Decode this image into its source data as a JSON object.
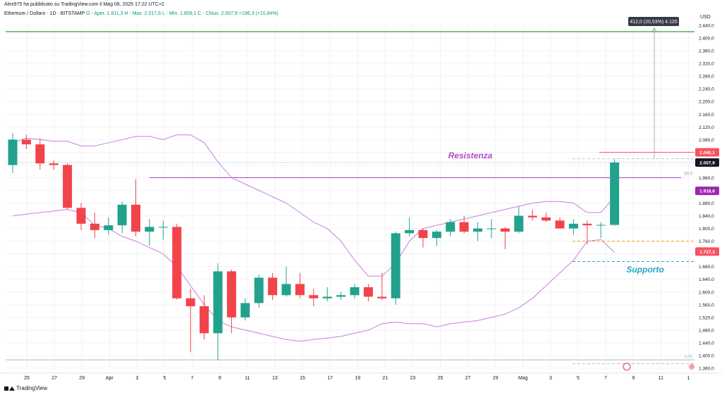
{
  "header": {
    "published": "Alex975 ha pubblicato su TradingView.com il Mag 08, 2025 17:22 UTC+2",
    "symbol": "Ethereum / Dollaro · 1D · BITSTAMP",
    "ohlc": "O - Aper. 1.811,3  H - Max. 2.017,6  L - Min. 1.809,1  C - Chius. 2.007,9 +196,3 (+10,84%)"
  },
  "footer": {
    "brand": "TradingView"
  },
  "colors": {
    "up": "#22a28c",
    "down": "#f2434b",
    "bands": "#c77ee0",
    "resistance_line": "#b04cc8",
    "top_line": "#4caf50",
    "grid": "#f2f3f5",
    "support_text": "#26a3c8"
  },
  "chart_data": {
    "type": "candlestick",
    "symbol": "Ethereum / Dollaro",
    "timeframe": "1D",
    "exchange": "BITSTAMP",
    "y_unit": "USD",
    "ylim": [
      1360,
      2440
    ],
    "y_ticks": [
      1360,
      1400,
      1440,
      1480,
      1520,
      1560,
      1600,
      1640,
      1680,
      1720,
      1760,
      1800,
      1840,
      1880,
      1920,
      1960,
      2000,
      2040,
      2080,
      2120,
      2160,
      2200,
      2240,
      2280,
      2320,
      2360,
      2400,
      2440
    ],
    "x_tick_labels": [
      "25",
      "27",
      "29",
      "Apr",
      "3",
      "5",
      "7",
      "9",
      "11",
      "13",
      "15",
      "17",
      "19",
      "21",
      "23",
      "25",
      "27",
      "29",
      "Mag",
      "3",
      "5",
      "7",
      "9",
      "11",
      "1"
    ],
    "candles": [
      {
        "date": "2025-03-25",
        "o": 2000,
        "h": 2100,
        "l": 1975,
        "c": 2080
      },
      {
        "date": "2025-03-26",
        "o": 2080,
        "h": 2095,
        "l": 2050,
        "c": 2065
      },
      {
        "date": "2025-03-27",
        "o": 2065,
        "h": 2085,
        "l": 1985,
        "c": 2005
      },
      {
        "date": "2025-03-28",
        "o": 2005,
        "h": 2015,
        "l": 1985,
        "c": 2000
      },
      {
        "date": "2025-03-29",
        "o": 2000,
        "h": 2005,
        "l": 1860,
        "c": 1865
      },
      {
        "date": "2025-03-30",
        "o": 1865,
        "h": 1880,
        "l": 1795,
        "c": 1815
      },
      {
        "date": "2025-03-31",
        "o": 1815,
        "h": 1850,
        "l": 1770,
        "c": 1795
      },
      {
        "date": "2025-04-01",
        "o": 1795,
        "h": 1835,
        "l": 1780,
        "c": 1810
      },
      {
        "date": "2025-04-02",
        "o": 1810,
        "h": 1885,
        "l": 1785,
        "c": 1875
      },
      {
        "date": "2025-04-03",
        "o": 1875,
        "h": 1955,
        "l": 1775,
        "c": 1790
      },
      {
        "date": "2025-04-04",
        "o": 1790,
        "h": 1830,
        "l": 1745,
        "c": 1805
      },
      {
        "date": "2025-04-05",
        "o": 1805,
        "h": 1825,
        "l": 1765,
        "c": 1805
      },
      {
        "date": "2025-04-06",
        "o": 1805,
        "h": 1815,
        "l": 1575,
        "c": 1580
      },
      {
        "date": "2025-04-07",
        "o": 1580,
        "h": 1610,
        "l": 1410,
        "c": 1555
      },
      {
        "date": "2025-04-08",
        "o": 1555,
        "h": 1590,
        "l": 1450,
        "c": 1470
      },
      {
        "date": "2025-04-09",
        "o": 1470,
        "h": 1690,
        "l": 1385,
        "c": 1665
      },
      {
        "date": "2025-04-10",
        "o": 1665,
        "h": 1670,
        "l": 1470,
        "c": 1520
      },
      {
        "date": "2025-04-11",
        "o": 1520,
        "h": 1580,
        "l": 1510,
        "c": 1565
      },
      {
        "date": "2025-04-12",
        "o": 1565,
        "h": 1655,
        "l": 1550,
        "c": 1645
      },
      {
        "date": "2025-04-13",
        "o": 1645,
        "h": 1660,
        "l": 1575,
        "c": 1590
      },
      {
        "date": "2025-04-14",
        "o": 1590,
        "h": 1680,
        "l": 1585,
        "c": 1625
      },
      {
        "date": "2025-04-15",
        "o": 1625,
        "h": 1660,
        "l": 1580,
        "c": 1590
      },
      {
        "date": "2025-04-16",
        "o": 1590,
        "h": 1610,
        "l": 1555,
        "c": 1580
      },
      {
        "date": "2025-04-17",
        "o": 1580,
        "h": 1615,
        "l": 1570,
        "c": 1585
      },
      {
        "date": "2025-04-18",
        "o": 1585,
        "h": 1600,
        "l": 1575,
        "c": 1590
      },
      {
        "date": "2025-04-19",
        "o": 1590,
        "h": 1625,
        "l": 1580,
        "c": 1615
      },
      {
        "date": "2025-04-20",
        "o": 1615,
        "h": 1625,
        "l": 1570,
        "c": 1585
      },
      {
        "date": "2025-04-21",
        "o": 1585,
        "h": 1660,
        "l": 1575,
        "c": 1580
      },
      {
        "date": "2025-04-22",
        "o": 1580,
        "h": 1790,
        "l": 1560,
        "c": 1785
      },
      {
        "date": "2025-04-23",
        "o": 1785,
        "h": 1835,
        "l": 1775,
        "c": 1795
      },
      {
        "date": "2025-04-24",
        "o": 1795,
        "h": 1800,
        "l": 1740,
        "c": 1770
      },
      {
        "date": "2025-04-25",
        "o": 1770,
        "h": 1795,
        "l": 1745,
        "c": 1790
      },
      {
        "date": "2025-04-26",
        "o": 1790,
        "h": 1830,
        "l": 1775,
        "c": 1820
      },
      {
        "date": "2025-04-27",
        "o": 1820,
        "h": 1840,
        "l": 1785,
        "c": 1790
      },
      {
        "date": "2025-04-28",
        "o": 1790,
        "h": 1820,
        "l": 1760,
        "c": 1800
      },
      {
        "date": "2025-04-29",
        "o": 1800,
        "h": 1830,
        "l": 1770,
        "c": 1800
      },
      {
        "date": "2025-04-30",
        "o": 1800,
        "h": 1805,
        "l": 1735,
        "c": 1790
      },
      {
        "date": "2025-05-01",
        "o": 1790,
        "h": 1870,
        "l": 1785,
        "c": 1840
      },
      {
        "date": "2025-05-02",
        "o": 1840,
        "h": 1860,
        "l": 1825,
        "c": 1835
      },
      {
        "date": "2025-05-03",
        "o": 1835,
        "h": 1850,
        "l": 1820,
        "c": 1825
      },
      {
        "date": "2025-05-04",
        "o": 1825,
        "h": 1835,
        "l": 1800,
        "c": 1800
      },
      {
        "date": "2025-05-05",
        "o": 1800,
        "h": 1830,
        "l": 1780,
        "c": 1815
      },
      {
        "date": "2025-05-06",
        "o": 1815,
        "h": 1825,
        "l": 1750,
        "c": 1810
      },
      {
        "date": "2025-05-07",
        "o": 1810,
        "h": 1820,
        "l": 1770,
        "c": 1811.3
      },
      {
        "date": "2025-05-08",
        "o": 1811.3,
        "h": 2017.6,
        "l": 1809.1,
        "c": 2007.9
      }
    ],
    "bollinger_upper": [
      2070,
      2085,
      2080,
      2075,
      2075,
      2060,
      2060,
      2070,
      2080,
      2090,
      2090,
      2080,
      2095,
      2095,
      2070,
      2010,
      1960,
      1940,
      1920,
      1900,
      1880,
      1850,
      1820,
      1800,
      1760,
      1700,
      1650,
      1650,
      1690,
      1760,
      1800,
      1810,
      1820,
      1830,
      1840,
      1850,
      1860,
      1870,
      1880,
      1885,
      1885,
      1880,
      1850,
      1850,
      1900
    ],
    "bollinger_lower": [
      1840,
      1845,
      1850,
      1855,
      1860,
      1850,
      1810,
      1800,
      1775,
      1760,
      1740,
      1720,
      1680,
      1620,
      1560,
      1510,
      1490,
      1480,
      1470,
      1460,
      1450,
      1445,
      1450,
      1455,
      1460,
      1470,
      1480,
      1500,
      1505,
      1500,
      1500,
      1490,
      1500,
      1505,
      1510,
      1520,
      1530,
      1550,
      1580,
      1620,
      1660,
      1700,
      1760,
      1765,
      1725
    ],
    "annotations": {
      "resistance_label": "Resistenza",
      "resistance_level": 1960,
      "support_label": "Supporto",
      "upper_zone_level": 2040.1,
      "top_line_level": 2420,
      "fib_50_label": "50,0",
      "fib_0_label": "0,00",
      "dashed_orange_level": 1760,
      "dashed_cyan_level": 1696,
      "measure_label": "412,0 (20,53%) 4.120"
    },
    "price_tags": [
      {
        "value": "2.040,1",
        "color": "#f7525f"
      },
      {
        "value": "2.007,9",
        "color": "#131722"
      },
      {
        "value": "1.918,6",
        "color": "#9c27b0"
      },
      {
        "value": "1.727,3",
        "color": "#f7525f"
      }
    ]
  }
}
